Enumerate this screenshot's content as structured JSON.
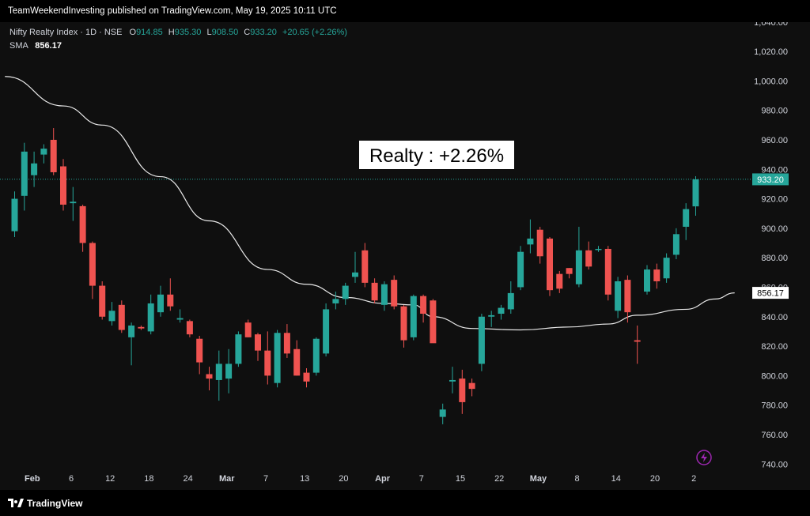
{
  "header": {
    "published_text": "TeamWeekendInvesting published on TradingView.com, May 19, 2025 10:11 UTC"
  },
  "legend": {
    "symbol": "Nifty Realty Index · 1D · NSE",
    "o_label": "O",
    "o_value": "914.85",
    "h_label": "H",
    "h_value": "935.30",
    "l_label": "L",
    "l_value": "908.50",
    "c_label": "C",
    "c_value": "933.20",
    "change": "+20.65 (+2.26%)",
    "sma_label": "SMA",
    "sma_value": "856.17"
  },
  "annotation": {
    "text": "Realty : +2.26%"
  },
  "price_tags": {
    "last": "933.20",
    "sma": "856.17"
  },
  "footer": {
    "brand": "TradingView"
  },
  "colors": {
    "up": "#26a69a",
    "down": "#ef5350",
    "sma": "#e8e8e8",
    "background": "#0f0f0f"
  },
  "chart_data": {
    "type": "candlestick",
    "title": "Nifty Realty Index · 1D · NSE",
    "y_axis": {
      "ticks": [
        1040,
        1020,
        1000,
        980,
        960,
        940,
        920,
        900,
        880,
        860,
        840,
        820,
        800,
        780,
        760,
        740
      ],
      "tick_labels": [
        "1,040.00",
        "1,020.00",
        "1,000.00",
        "980.00",
        "960.00",
        "940.00",
        "920.00",
        "900.00",
        "880.00",
        "860.00",
        "840.00",
        "820.00",
        "800.00",
        "780.00",
        "760.00",
        "740.00"
      ],
      "range": [
        735,
        1045
      ]
    },
    "x_axis": {
      "tick_labels": [
        "Feb",
        "6",
        "12",
        "18",
        "24",
        "Mar",
        "7",
        "13",
        "20",
        "Apr",
        "7",
        "15",
        "22",
        "May",
        "8",
        "14",
        "20",
        "2"
      ],
      "tick_slots": [
        1,
        5,
        9,
        13,
        17,
        21,
        25,
        29,
        33,
        37,
        41,
        45,
        49,
        53,
        57,
        61,
        65,
        69
      ]
    },
    "candles": [
      {
        "o": 898,
        "h": 925,
        "l": 894,
        "c": 920
      },
      {
        "o": 922,
        "h": 958,
        "l": 912,
        "c": 952
      },
      {
        "o": 936,
        "h": 952,
        "l": 928,
        "c": 944
      },
      {
        "o": 950,
        "h": 957,
        "l": 944,
        "c": 954
      },
      {
        "o": 960,
        "h": 968,
        "l": 936,
        "c": 938
      },
      {
        "o": 942,
        "h": 947,
        "l": 912,
        "c": 916
      },
      {
        "o": 917,
        "h": 928,
        "l": 905,
        "c": 918
      },
      {
        "o": 915,
        "h": 916,
        "l": 884,
        "c": 890
      },
      {
        "o": 890,
        "h": 891,
        "l": 852,
        "c": 861
      },
      {
        "o": 861,
        "h": 864,
        "l": 838,
        "c": 840
      },
      {
        "o": 837,
        "h": 850,
        "l": 834,
        "c": 844
      },
      {
        "o": 848,
        "h": 851,
        "l": 829,
        "c": 831
      },
      {
        "o": 826,
        "h": 836,
        "l": 807,
        "c": 834
      },
      {
        "o": 833,
        "h": 834,
        "l": 831,
        "c": 832
      },
      {
        "o": 830,
        "h": 855,
        "l": 828,
        "c": 849
      },
      {
        "o": 843,
        "h": 861,
        "l": 840,
        "c": 855
      },
      {
        "o": 855,
        "h": 866,
        "l": 844,
        "c": 847
      },
      {
        "o": 838,
        "h": 845,
        "l": 836,
        "c": 839
      },
      {
        "o": 837,
        "h": 838,
        "l": 826,
        "c": 828
      },
      {
        "o": 825,
        "h": 827,
        "l": 801,
        "c": 809
      },
      {
        "o": 801,
        "h": 806,
        "l": 790,
        "c": 798
      },
      {
        "o": 797,
        "h": 817,
        "l": 783,
        "c": 808
      },
      {
        "o": 798,
        "h": 818,
        "l": 788,
        "c": 808
      },
      {
        "o": 808,
        "h": 830,
        "l": 806,
        "c": 828
      },
      {
        "o": 836,
        "h": 838,
        "l": 826,
        "c": 826
      },
      {
        "o": 828,
        "h": 829,
        "l": 810,
        "c": 817
      },
      {
        "o": 817,
        "h": 830,
        "l": 794,
        "c": 800
      },
      {
        "o": 795,
        "h": 831,
        "l": 792,
        "c": 829
      },
      {
        "o": 829,
        "h": 835,
        "l": 812,
        "c": 815
      },
      {
        "o": 818,
        "h": 824,
        "l": 800,
        "c": 800
      },
      {
        "o": 802,
        "h": 805,
        "l": 792,
        "c": 796
      },
      {
        "o": 802,
        "h": 826,
        "l": 800,
        "c": 825
      },
      {
        "o": 815,
        "h": 849,
        "l": 813,
        "c": 845
      },
      {
        "o": 849,
        "h": 857,
        "l": 845,
        "c": 852
      },
      {
        "o": 852,
        "h": 863,
        "l": 848,
        "c": 861
      },
      {
        "o": 867,
        "h": 884,
        "l": 863,
        "c": 870
      },
      {
        "o": 885,
        "h": 890,
        "l": 860,
        "c": 863
      },
      {
        "o": 863,
        "h": 866,
        "l": 849,
        "c": 851
      },
      {
        "o": 848,
        "h": 864,
        "l": 844,
        "c": 862
      },
      {
        "o": 865,
        "h": 868,
        "l": 845,
        "c": 847
      },
      {
        "o": 847,
        "h": 848,
        "l": 819,
        "c": 824
      },
      {
        "o": 826,
        "h": 855,
        "l": 824,
        "c": 854
      },
      {
        "o": 854,
        "h": 855,
        "l": 836,
        "c": 842
      },
      {
        "o": 851,
        "h": 852,
        "l": 824,
        "c": 822
      },
      {
        "o": 772,
        "h": 781,
        "l": 767,
        "c": 777
      },
      {
        "o": 796,
        "h": 806,
        "l": 788,
        "c": 797
      },
      {
        "o": 798,
        "h": 804,
        "l": 774,
        "c": 782
      },
      {
        "o": 795,
        "h": 798,
        "l": 786,
        "c": 791
      },
      {
        "o": 808,
        "h": 842,
        "l": 803,
        "c": 840
      },
      {
        "o": 840,
        "h": 844,
        "l": 833,
        "c": 841
      },
      {
        "o": 842,
        "h": 848,
        "l": 838,
        "c": 846
      },
      {
        "o": 845,
        "h": 864,
        "l": 842,
        "c": 856
      },
      {
        "o": 860,
        "h": 888,
        "l": 858,
        "c": 884
      },
      {
        "o": 889,
        "h": 906,
        "l": 883,
        "c": 893
      },
      {
        "o": 899,
        "h": 901,
        "l": 876,
        "c": 881
      },
      {
        "o": 893,
        "h": 894,
        "l": 854,
        "c": 858
      },
      {
        "o": 869,
        "h": 871,
        "l": 856,
        "c": 859
      },
      {
        "o": 873,
        "h": 873,
        "l": 866,
        "c": 869
      },
      {
        "o": 862,
        "h": 901,
        "l": 860,
        "c": 885
      },
      {
        "o": 885,
        "h": 891,
        "l": 872,
        "c": 874
      },
      {
        "o": 886,
        "h": 888,
        "l": 884,
        "c": 886
      },
      {
        "o": 886,
        "h": 888,
        "l": 851,
        "c": 855
      },
      {
        "o": 844,
        "h": 867,
        "l": 839,
        "c": 864
      },
      {
        "o": 865,
        "h": 868,
        "l": 836,
        "c": 843
      },
      {
        "o": 824,
        "h": 834,
        "l": 808,
        "c": 823
      },
      {
        "o": 857,
        "h": 875,
        "l": 855,
        "c": 872
      },
      {
        "o": 872,
        "h": 876,
        "l": 859,
        "c": 864
      },
      {
        "o": 866,
        "h": 883,
        "l": 863,
        "c": 880
      },
      {
        "o": 882,
        "h": 900,
        "l": 879,
        "c": 896
      },
      {
        "o": 901,
        "h": 917,
        "l": 892,
        "c": 913
      },
      {
        "o": 914.85,
        "h": 935.3,
        "l": 908.5,
        "c": 933.2
      }
    ],
    "sma": [
      {
        "i": -1,
        "v": 1003
      },
      {
        "i": 5,
        "v": 983
      },
      {
        "i": 9,
        "v": 970
      },
      {
        "i": 15,
        "v": 935
      },
      {
        "i": 20,
        "v": 905
      },
      {
        "i": 26,
        "v": 872
      },
      {
        "i": 30,
        "v": 862
      },
      {
        "i": 34,
        "v": 853
      },
      {
        "i": 38,
        "v": 849
      },
      {
        "i": 41,
        "v": 848
      },
      {
        "i": 43,
        "v": 840
      },
      {
        "i": 47,
        "v": 832
      },
      {
        "i": 52,
        "v": 831
      },
      {
        "i": 57,
        "v": 833
      },
      {
        "i": 61,
        "v": 835
      },
      {
        "i": 64,
        "v": 841
      },
      {
        "i": 69,
        "v": 845
      },
      {
        "i": 72,
        "v": 852
      },
      {
        "i": 74,
        "v": 856.17
      }
    ],
    "last_price": 933.2,
    "sma_last": 856.17
  }
}
